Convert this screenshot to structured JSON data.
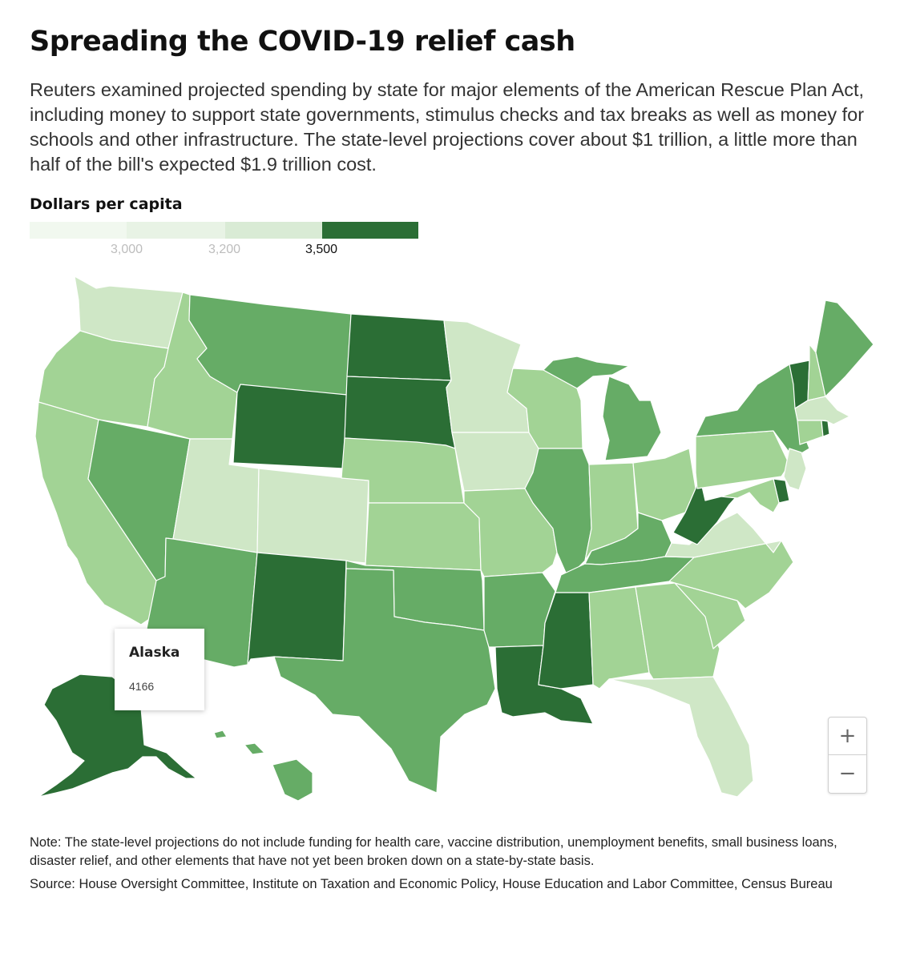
{
  "title": "Spreading the COVID-19 relief cash",
  "subtitle": "Reuters examined projected spending by state for major elements of the American Rescue Plan Act, including money to support state governments, stimulus checks and tax breaks as well as money for schools and other infrastructure. The state-level projections cover about $1 trillion, a little more than half of the bill's expected $1.9 trillion cost.",
  "legend": {
    "title": "Dollars per capita",
    "ticks": [
      "3,000",
      "3,200",
      "3,500"
    ],
    "active_tick": 2,
    "colors": [
      "#f1f8ef",
      "#e8f3e5",
      "#d9ebd5",
      "#2b6e35"
    ]
  },
  "bins": {
    "1": "#cfe7c6",
    "2": "#a2d395",
    "3": "#66ac66",
    "4": "#2b6e35"
  },
  "states": {
    "WA": 1,
    "OR": 2,
    "CA": 2,
    "ID": 2,
    "NV": 3,
    "UT": 1,
    "AZ": 3,
    "MT": 3,
    "WY": 4,
    "CO": 1,
    "NM": 4,
    "ND": 4,
    "SD": 4,
    "NE": 2,
    "KS": 2,
    "OK": 3,
    "TX": 3,
    "MN": 1,
    "IA": 1,
    "MO": 2,
    "AR": 3,
    "LA": 4,
    "WI": 2,
    "IL": 3,
    "MS": 4,
    "MI": 3,
    "IN": 2,
    "KY": 3,
    "TN": 3,
    "AL": 2,
    "OH": 2,
    "WV": 4,
    "GA": 2,
    "FL": 1,
    "SC": 2,
    "NC": 2,
    "VA": 1,
    "PA": 2,
    "NY": 3,
    "VT": 4,
    "NH": 2,
    "ME": 3,
    "MA": 1,
    "CT": 2,
    "RI": 4,
    "NJ": 1,
    "DE": 4,
    "MD": 2,
    "AK": 4,
    "HI": 3
  },
  "tooltip": {
    "name": "Alaska",
    "value": "4166"
  },
  "zoom": {
    "in": "+",
    "out": "−"
  },
  "note": "Note: The state-level projections do not include funding for health care, vaccine distribution, unemployment benefits, small business loans, disaster relief, and other elements that have not yet been broken down on a state-by-state basis.",
  "source": "Source: House Oversight Committee, Institute on Taxation and Economic Policy, House Education and Labor Committee, Census Bureau"
}
